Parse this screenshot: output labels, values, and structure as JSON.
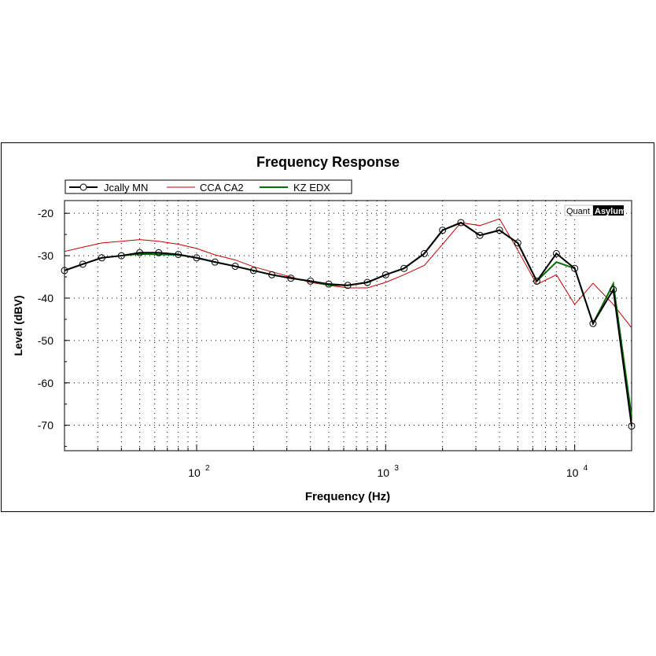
{
  "chart_data": {
    "type": "line",
    "title": "Frequency Response",
    "xlabel": "Frequency (Hz)",
    "ylabel": "Level (dBV)",
    "xscale": "log",
    "xlim": [
      20,
      20000
    ],
    "ylim": [
      -76,
      -17
    ],
    "yticks": [
      -20,
      -30,
      -40,
      -50,
      -60,
      -70
    ],
    "xticks": [
      {
        "value": 100,
        "base": "10",
        "exp": "2"
      },
      {
        "value": 1000,
        "base": "10",
        "exp": "3"
      },
      {
        "value": 10000,
        "base": "10",
        "exp": "4"
      }
    ],
    "grid": true,
    "legend_placement": "top-left",
    "watermark": [
      "Quant",
      "Asylum"
    ],
    "x": [
      20,
      25,
      31.5,
      40,
      50,
      63,
      80,
      100,
      125,
      160,
      200,
      250,
      315,
      400,
      500,
      630,
      800,
      1000,
      1250,
      1600,
      2000,
      2500,
      3150,
      4000,
      5000,
      6300,
      8000,
      10000,
      12500,
      16000,
      20000
    ],
    "series": [
      {
        "name": "Jcally MN",
        "color": "#000000",
        "markers": true,
        "values": [
          -33.5,
          -32,
          -30.5,
          -30,
          -29.3,
          -29.3,
          -29.7,
          -30.5,
          -31.5,
          -32.5,
          -33.5,
          -34.5,
          -35.3,
          -36,
          -36.7,
          -37,
          -36.3,
          -34.5,
          -33,
          -29.5,
          -24,
          -22.2,
          -25.2,
          -24,
          -27,
          -36,
          -29.5,
          -33,
          -46,
          -38,
          -70.2
        ]
      },
      {
        "name": "CCA CA2",
        "color": "#c00000",
        "markers": false,
        "values": [
          -29,
          -28,
          -27,
          -26.6,
          -26.2,
          -26.6,
          -27.3,
          -28.3,
          -29.8,
          -31,
          -32.6,
          -33.8,
          -35,
          -36.3,
          -37,
          -37.6,
          -37.6,
          -36.3,
          -34.5,
          -32.3,
          -27.3,
          -22.2,
          -22.9,
          -21.3,
          -28.7,
          -36.8,
          -34.5,
          -41.5,
          -36.5,
          -41.5,
          -47
        ]
      },
      {
        "name": "KZ EDX",
        "color": "#007000",
        "markers": false,
        "values": [
          -33.5,
          -32,
          -30.5,
          -30,
          -29.6,
          -29.7,
          -29.8,
          -30.5,
          -31.5,
          -32.5,
          -33.5,
          -34.5,
          -35.3,
          -36,
          -36.9,
          -37,
          -36.3,
          -34.5,
          -33,
          -29.5,
          -24,
          -22.2,
          -25.2,
          -24,
          -27,
          -36,
          -31.5,
          -33,
          -46,
          -36.6,
          -68
        ]
      }
    ]
  }
}
